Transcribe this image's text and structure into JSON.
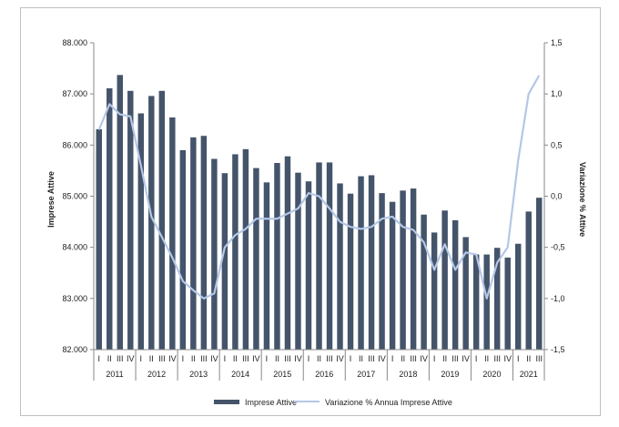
{
  "chart_data": {
    "type": "bar",
    "title": "",
    "ylabel": "Imprese Attive",
    "y2label": "Variazione % Attive",
    "ylim": [
      82000,
      88000
    ],
    "y2lim": [
      -1.5,
      1.5
    ],
    "ytick_labels": [
      "82.000",
      "83.000",
      "84.000",
      "85.000",
      "86.000",
      "87.000",
      "88.000"
    ],
    "y2tick_labels": [
      "-1,5",
      "-1,0",
      "-0,5",
      "0,0",
      "0,5",
      "1,0",
      "1,5"
    ],
    "years": [
      "2011",
      "2012",
      "2013",
      "2014",
      "2015",
      "2016",
      "2017",
      "2018",
      "2019",
      "2020",
      "2021"
    ],
    "quarters": [
      "I",
      "II",
      "III",
      "IV"
    ],
    "categories": [
      "I 2011",
      "II 2011",
      "III 2011",
      "IV 2011",
      "I 2012",
      "II 2012",
      "III 2012",
      "IV 2012",
      "I 2013",
      "II 2013",
      "III 2013",
      "IV 2013",
      "I 2014",
      "II 2014",
      "III 2014",
      "IV 2014",
      "I 2015",
      "II 2015",
      "III 2015",
      "IV 2015",
      "I 2016",
      "II 2016",
      "III 2016",
      "IV 2016",
      "I 2017",
      "II 2017",
      "III 2017",
      "IV 2017",
      "I 2018",
      "II 2018",
      "III 2018",
      "IV 2018",
      "I 2019",
      "II 2019",
      "III 2019",
      "IV 2019",
      "I 2020",
      "II 2020",
      "III 2020",
      "IV 2020",
      "I 2021",
      "II 2021",
      "III 2021"
    ],
    "series": [
      {
        "name": "Imprese Attive",
        "type": "bar",
        "axis": "left",
        "color": "#44546a",
        "values": [
          86310,
          87110,
          87370,
          87060,
          86620,
          86960,
          87060,
          86540,
          85900,
          86150,
          86180,
          85730,
          85450,
          85820,
          85920,
          85550,
          85270,
          85650,
          85780,
          85460,
          85290,
          85660,
          85660,
          85250,
          85050,
          85390,
          85410,
          85060,
          84890,
          85110,
          85150,
          84640,
          84290,
          84720,
          84530,
          84200,
          83860,
          83860,
          83990,
          83800,
          84070,
          84700,
          84970
        ]
      },
      {
        "name": "Variazione % Annua Imprese Attive",
        "type": "line",
        "axis": "right",
        "color": "#b4c7e7",
        "values": [
          0.65,
          0.9,
          0.8,
          0.78,
          0.3,
          -0.2,
          -0.4,
          -0.6,
          -0.83,
          -0.92,
          -1.0,
          -0.95,
          -0.5,
          -0.38,
          -0.32,
          -0.22,
          -0.22,
          -0.22,
          -0.17,
          -0.12,
          0.03,
          0.0,
          -0.12,
          -0.25,
          -0.3,
          -0.32,
          -0.3,
          -0.22,
          -0.2,
          -0.3,
          -0.33,
          -0.45,
          -0.72,
          -0.47,
          -0.72,
          -0.55,
          -0.57,
          -1.0,
          -0.65,
          -0.5,
          0.35,
          1.0,
          1.18
        ]
      }
    ],
    "legend_position": "bottom",
    "grid": false
  }
}
